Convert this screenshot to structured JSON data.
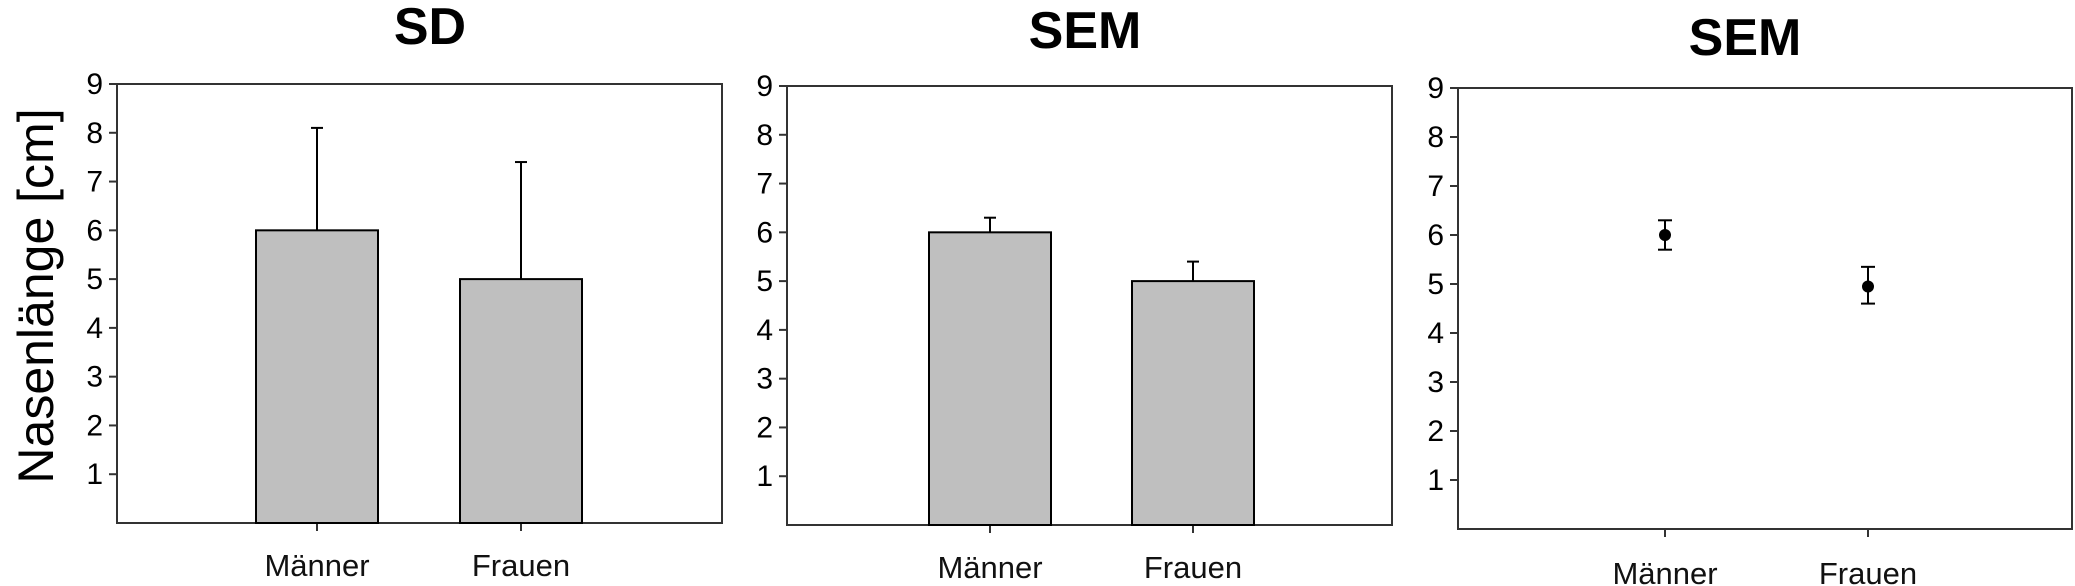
{
  "ylabel": "Nasenlänge [cm]",
  "colors": {
    "bar_fill": "#bfbfbf",
    "frame": "#333333",
    "ink": "#000000"
  },
  "chart_data": [
    {
      "type": "bar",
      "title": "SD",
      "categories": [
        "Männer",
        "Frauen"
      ],
      "values": [
        6.0,
        5.0
      ],
      "error_upper": [
        8.1,
        7.4
      ],
      "ylabel": "Nasenlänge [cm]",
      "yticks": [
        1,
        2,
        3,
        4,
        5,
        6,
        7,
        8,
        9
      ],
      "ylim": [
        0,
        9
      ],
      "grid": false
    },
    {
      "type": "bar",
      "title": "SEM",
      "categories": [
        "Männer",
        "Frauen"
      ],
      "values": [
        6.0,
        5.0
      ],
      "error_upper": [
        6.3,
        5.4
      ],
      "yticks": [
        1,
        2,
        3,
        4,
        5,
        6,
        7,
        8,
        9
      ],
      "ylim": [
        0,
        9
      ],
      "grid": false
    },
    {
      "type": "scatter",
      "title": "SEM",
      "categories": [
        "Männer",
        "Frauen"
      ],
      "values": [
        6.0,
        4.95
      ],
      "error_lower": [
        5.7,
        4.6
      ],
      "error_upper": [
        6.3,
        5.35
      ],
      "yticks": [
        1,
        2,
        3,
        4,
        5,
        6,
        7,
        8,
        9
      ],
      "ylim": [
        0,
        9
      ],
      "grid": false
    }
  ]
}
